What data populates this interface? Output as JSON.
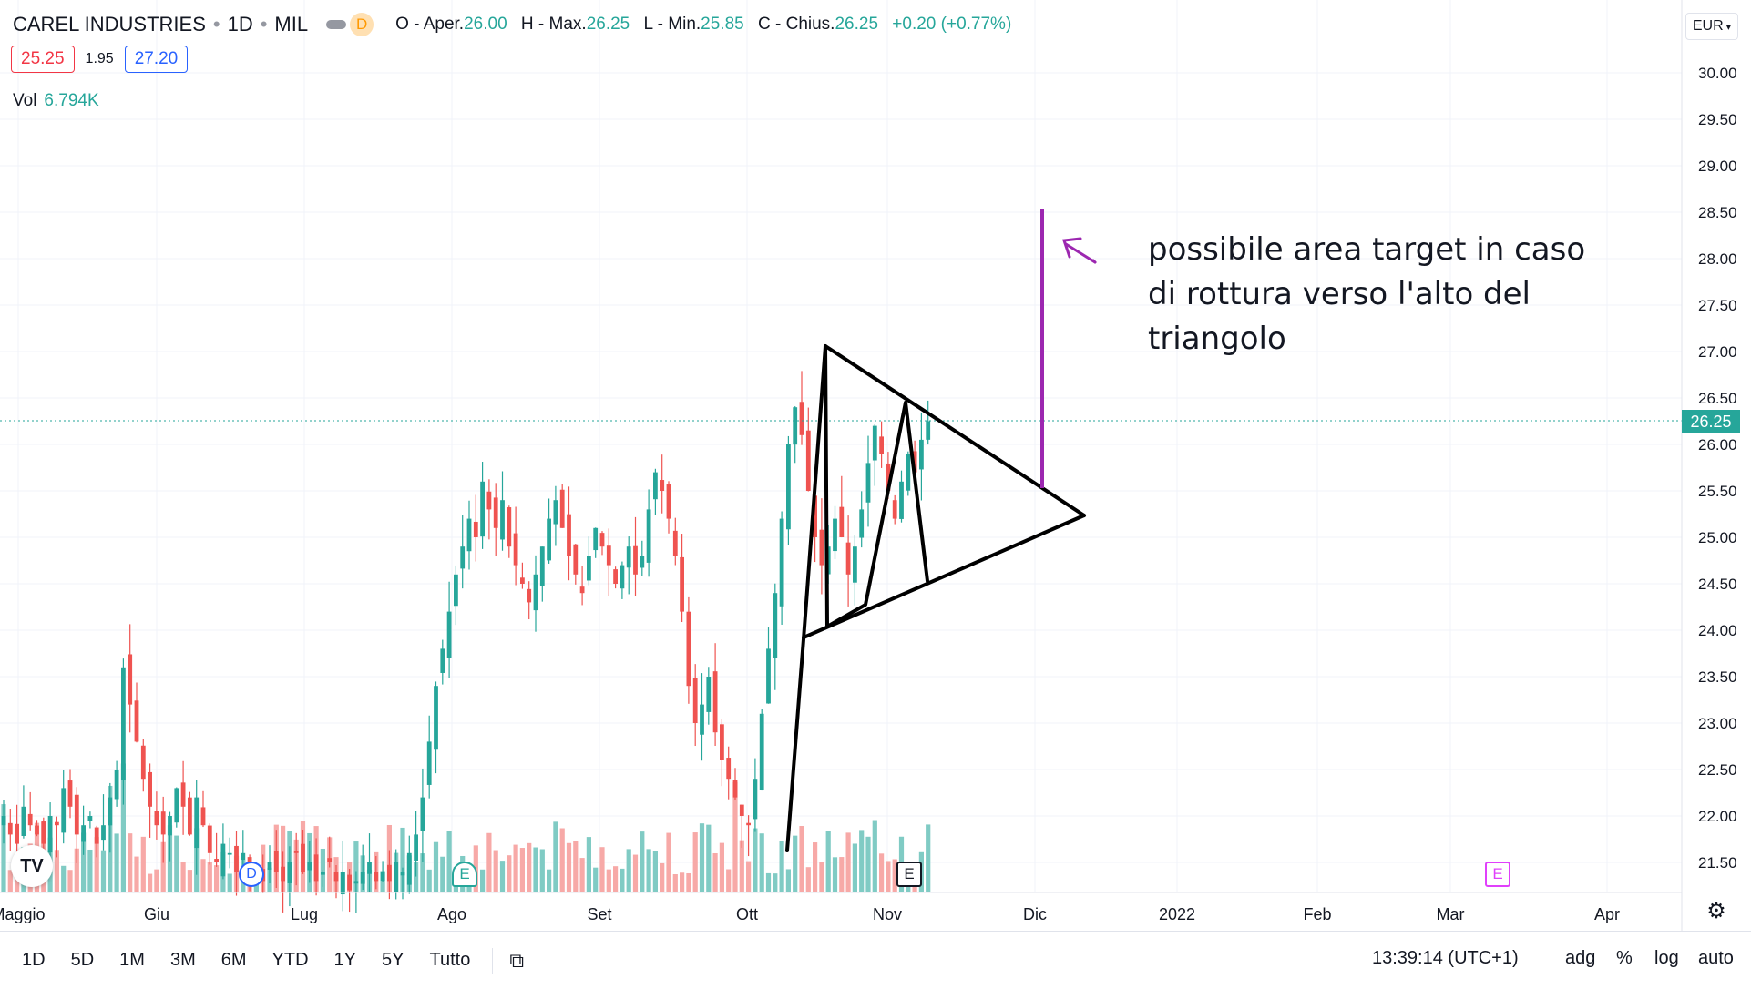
{
  "header": {
    "symbol": "CAREL INDUSTRIES",
    "interval": "1D",
    "exchange": "MIL",
    "delay_badge": "D",
    "ohlc": {
      "open_label": "O - Aper.",
      "open": "26.00",
      "high_label": "H - Max.",
      "high": "26.25",
      "low_label": "L - Min.",
      "low": "25.85",
      "close_label": "C - Chius.",
      "close": "26.25",
      "change": "+0.20 (+0.77%)"
    },
    "sell_price": "25.25",
    "spread": "1.95",
    "buy_price": "27.20",
    "volume_label": "Vol",
    "volume_value": "6.794K",
    "currency": "EUR"
  },
  "annotation": {
    "text": "possibile area target in caso di rottura verso l'alto del triangolo"
  },
  "price_axis": {
    "ticks": [
      "30.00",
      "29.50",
      "29.00",
      "28.50",
      "28.00",
      "27.50",
      "27.00",
      "26.50",
      "26.00",
      "25.50",
      "25.00",
      "24.50",
      "24.00",
      "23.50",
      "23.00",
      "22.50",
      "22.00",
      "21.50"
    ],
    "last_price": "26.25"
  },
  "time_axis": {
    "ticks": [
      "Maggio",
      "Giu",
      "Lug",
      "Ago",
      "Set",
      "Ott",
      "Nov",
      "Dic",
      "2022",
      "Feb",
      "Mar",
      "Apr"
    ]
  },
  "events": {
    "earnings_label": "E",
    "dividend_label": "D"
  },
  "toolbar": {
    "ranges": [
      "1D",
      "5D",
      "1M",
      "3M",
      "6M",
      "YTD",
      "1Y",
      "5Y",
      "Tutto"
    ],
    "time": "13:39:14 (UTC+1)",
    "adj": "adg",
    "percent": "%",
    "log": "log",
    "auto": "auto"
  },
  "colors": {
    "up": "#26a69a",
    "down": "#ef5350",
    "vol_up": "#80cbc4",
    "vol_down": "#f7a9a7",
    "drawing": "#000000",
    "target_line": "#9c27b0"
  },
  "icons": {
    "logo": "tradingview-logo-icon",
    "compare": "calendar-range-icon",
    "settings": "gear-icon",
    "arrow": "arrow-up-left-icon"
  }
}
